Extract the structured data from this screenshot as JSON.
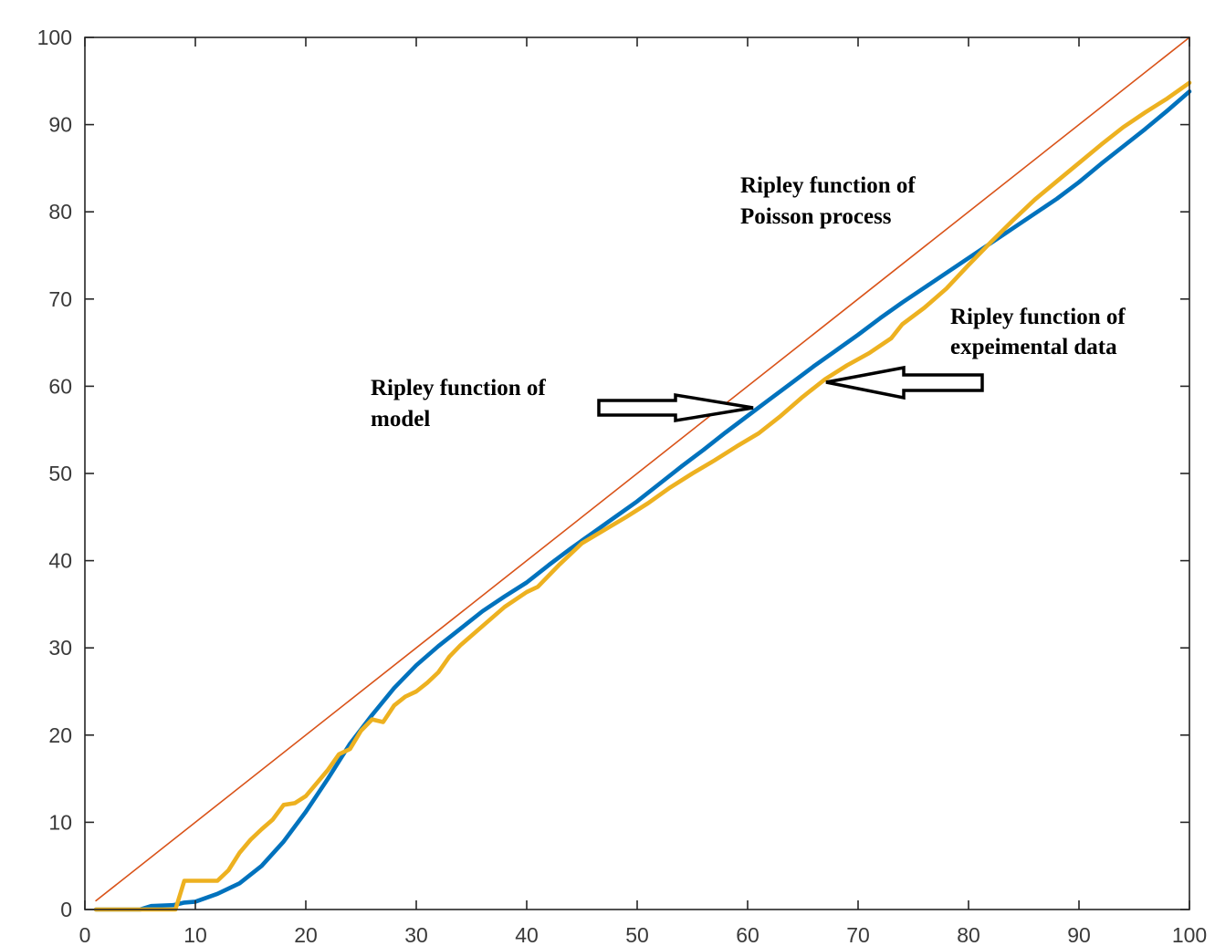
{
  "chart_data": {
    "type": "line",
    "title": "",
    "xlabel": "",
    "ylabel": "",
    "xlim": [
      0,
      100
    ],
    "ylim": [
      0,
      100
    ],
    "xticks": [
      0,
      10,
      20,
      30,
      40,
      50,
      60,
      70,
      80,
      90,
      100
    ],
    "yticks": [
      0,
      10,
      20,
      30,
      40,
      50,
      60,
      70,
      80,
      90,
      100
    ],
    "grid": false,
    "series": [
      {
        "key": "poisson",
        "color": "#d95319",
        "x": [
          1,
          100
        ],
        "y": [
          1,
          100
        ]
      },
      {
        "key": "model",
        "color": "#0072bd",
        "x": [
          1,
          5,
          6,
          8,
          9,
          10,
          12,
          14,
          16,
          18,
          20,
          22,
          24,
          26,
          28,
          30,
          32,
          34,
          36,
          38,
          40,
          42,
          44,
          46,
          48,
          50,
          52,
          54,
          56,
          58,
          60,
          62,
          64,
          66,
          68,
          70,
          72,
          74,
          76,
          78,
          80,
          82,
          84,
          86,
          88,
          90,
          92,
          94,
          96,
          98,
          100
        ],
        "y": [
          0,
          0,
          0.4,
          0.5,
          0.8,
          0.9,
          1.8,
          3.0,
          5.0,
          7.8,
          11.2,
          15.0,
          19.0,
          22.3,
          25.4,
          28.0,
          30.2,
          32.2,
          34.2,
          35.9,
          37.5,
          39.5,
          41.4,
          43.2,
          45.0,
          46.8,
          48.8,
          50.8,
          52.7,
          54.7,
          56.6,
          58.5,
          60.4,
          62.3,
          64.1,
          65.9,
          67.8,
          69.6,
          71.3,
          73.0,
          74.7,
          76.4,
          78.1,
          79.8,
          81.5,
          83.4,
          85.5,
          87.5,
          89.5,
          91.6,
          93.8
        ]
      },
      {
        "key": "experimental",
        "color": "#edb120",
        "x": [
          1,
          5,
          6,
          8,
          8.2,
          9,
          10,
          12,
          13,
          14,
          15,
          16,
          17,
          18,
          19,
          20,
          21,
          22,
          23,
          24,
          25,
          26,
          27,
          28,
          29,
          30,
          31,
          32,
          33,
          34,
          36,
          38,
          40,
          41,
          43,
          45,
          47,
          49,
          51,
          53,
          55,
          57,
          59,
          61,
          63,
          65,
          67,
          69,
          71,
          73,
          74,
          76,
          78,
          80,
          82,
          84,
          86,
          88,
          90,
          92,
          94,
          96,
          98,
          100
        ],
        "y": [
          0,
          0,
          0,
          0,
          0,
          3.3,
          3.3,
          3.3,
          4.5,
          6.5,
          8.0,
          9.2,
          10.3,
          12.0,
          12.2,
          13.0,
          14.5,
          16.0,
          17.8,
          18.4,
          20.5,
          21.8,
          21.5,
          23.4,
          24.4,
          25.0,
          26.0,
          27.2,
          29.0,
          30.3,
          32.5,
          34.7,
          36.4,
          37.0,
          39.6,
          42.0,
          43.5,
          45.0,
          46.6,
          48.4,
          50.0,
          51.5,
          53.1,
          54.6,
          56.6,
          58.8,
          60.8,
          62.4,
          63.8,
          65.5,
          67.1,
          69.0,
          71.2,
          73.9,
          76.5,
          79.0,
          81.4,
          83.5,
          85.6,
          87.7,
          89.7,
          91.4,
          93.0,
          94.8
        ]
      }
    ],
    "annotations": [
      {
        "lines": [
          "Ripley function of",
          "Poisson process"
        ]
      },
      {
        "lines": [
          "Ripley function of",
          "expeimental data"
        ]
      },
      {
        "lines": [
          "Ripley function of",
          "model"
        ]
      }
    ]
  }
}
